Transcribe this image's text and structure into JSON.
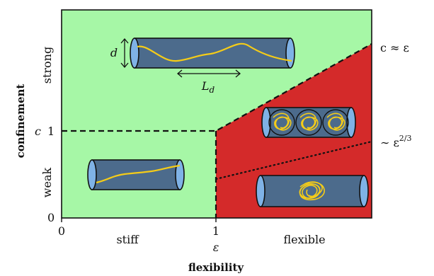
{
  "axes": {
    "x_title": "flexibility",
    "y_title": "confinement",
    "x_ticks": [
      {
        "main": "0",
        "sub": ""
      },
      {
        "main": "1",
        "sub": "ε"
      }
    ],
    "x_regions": [
      "stiff",
      "flexible"
    ],
    "y_ticks": [
      "0",
      "1"
    ],
    "y_tick_prefix": "c",
    "y_regions": [
      "weak",
      "strong"
    ]
  },
  "boundaries": {
    "upper_line": "c ≈ ε",
    "lower_line_base": "∼ ε",
    "lower_line_exp": "2/3"
  },
  "insets": {
    "diameter_label": "d",
    "length_label": "L",
    "length_label_sub": "d"
  },
  "colors": {
    "weak_confinement_region": "#a6f7a6",
    "flexible_region": "#d42a2a",
    "tube_body": "#4c6b8c",
    "tube_cap": "#7fb2e6",
    "polymer": "#f5cc18"
  }
}
